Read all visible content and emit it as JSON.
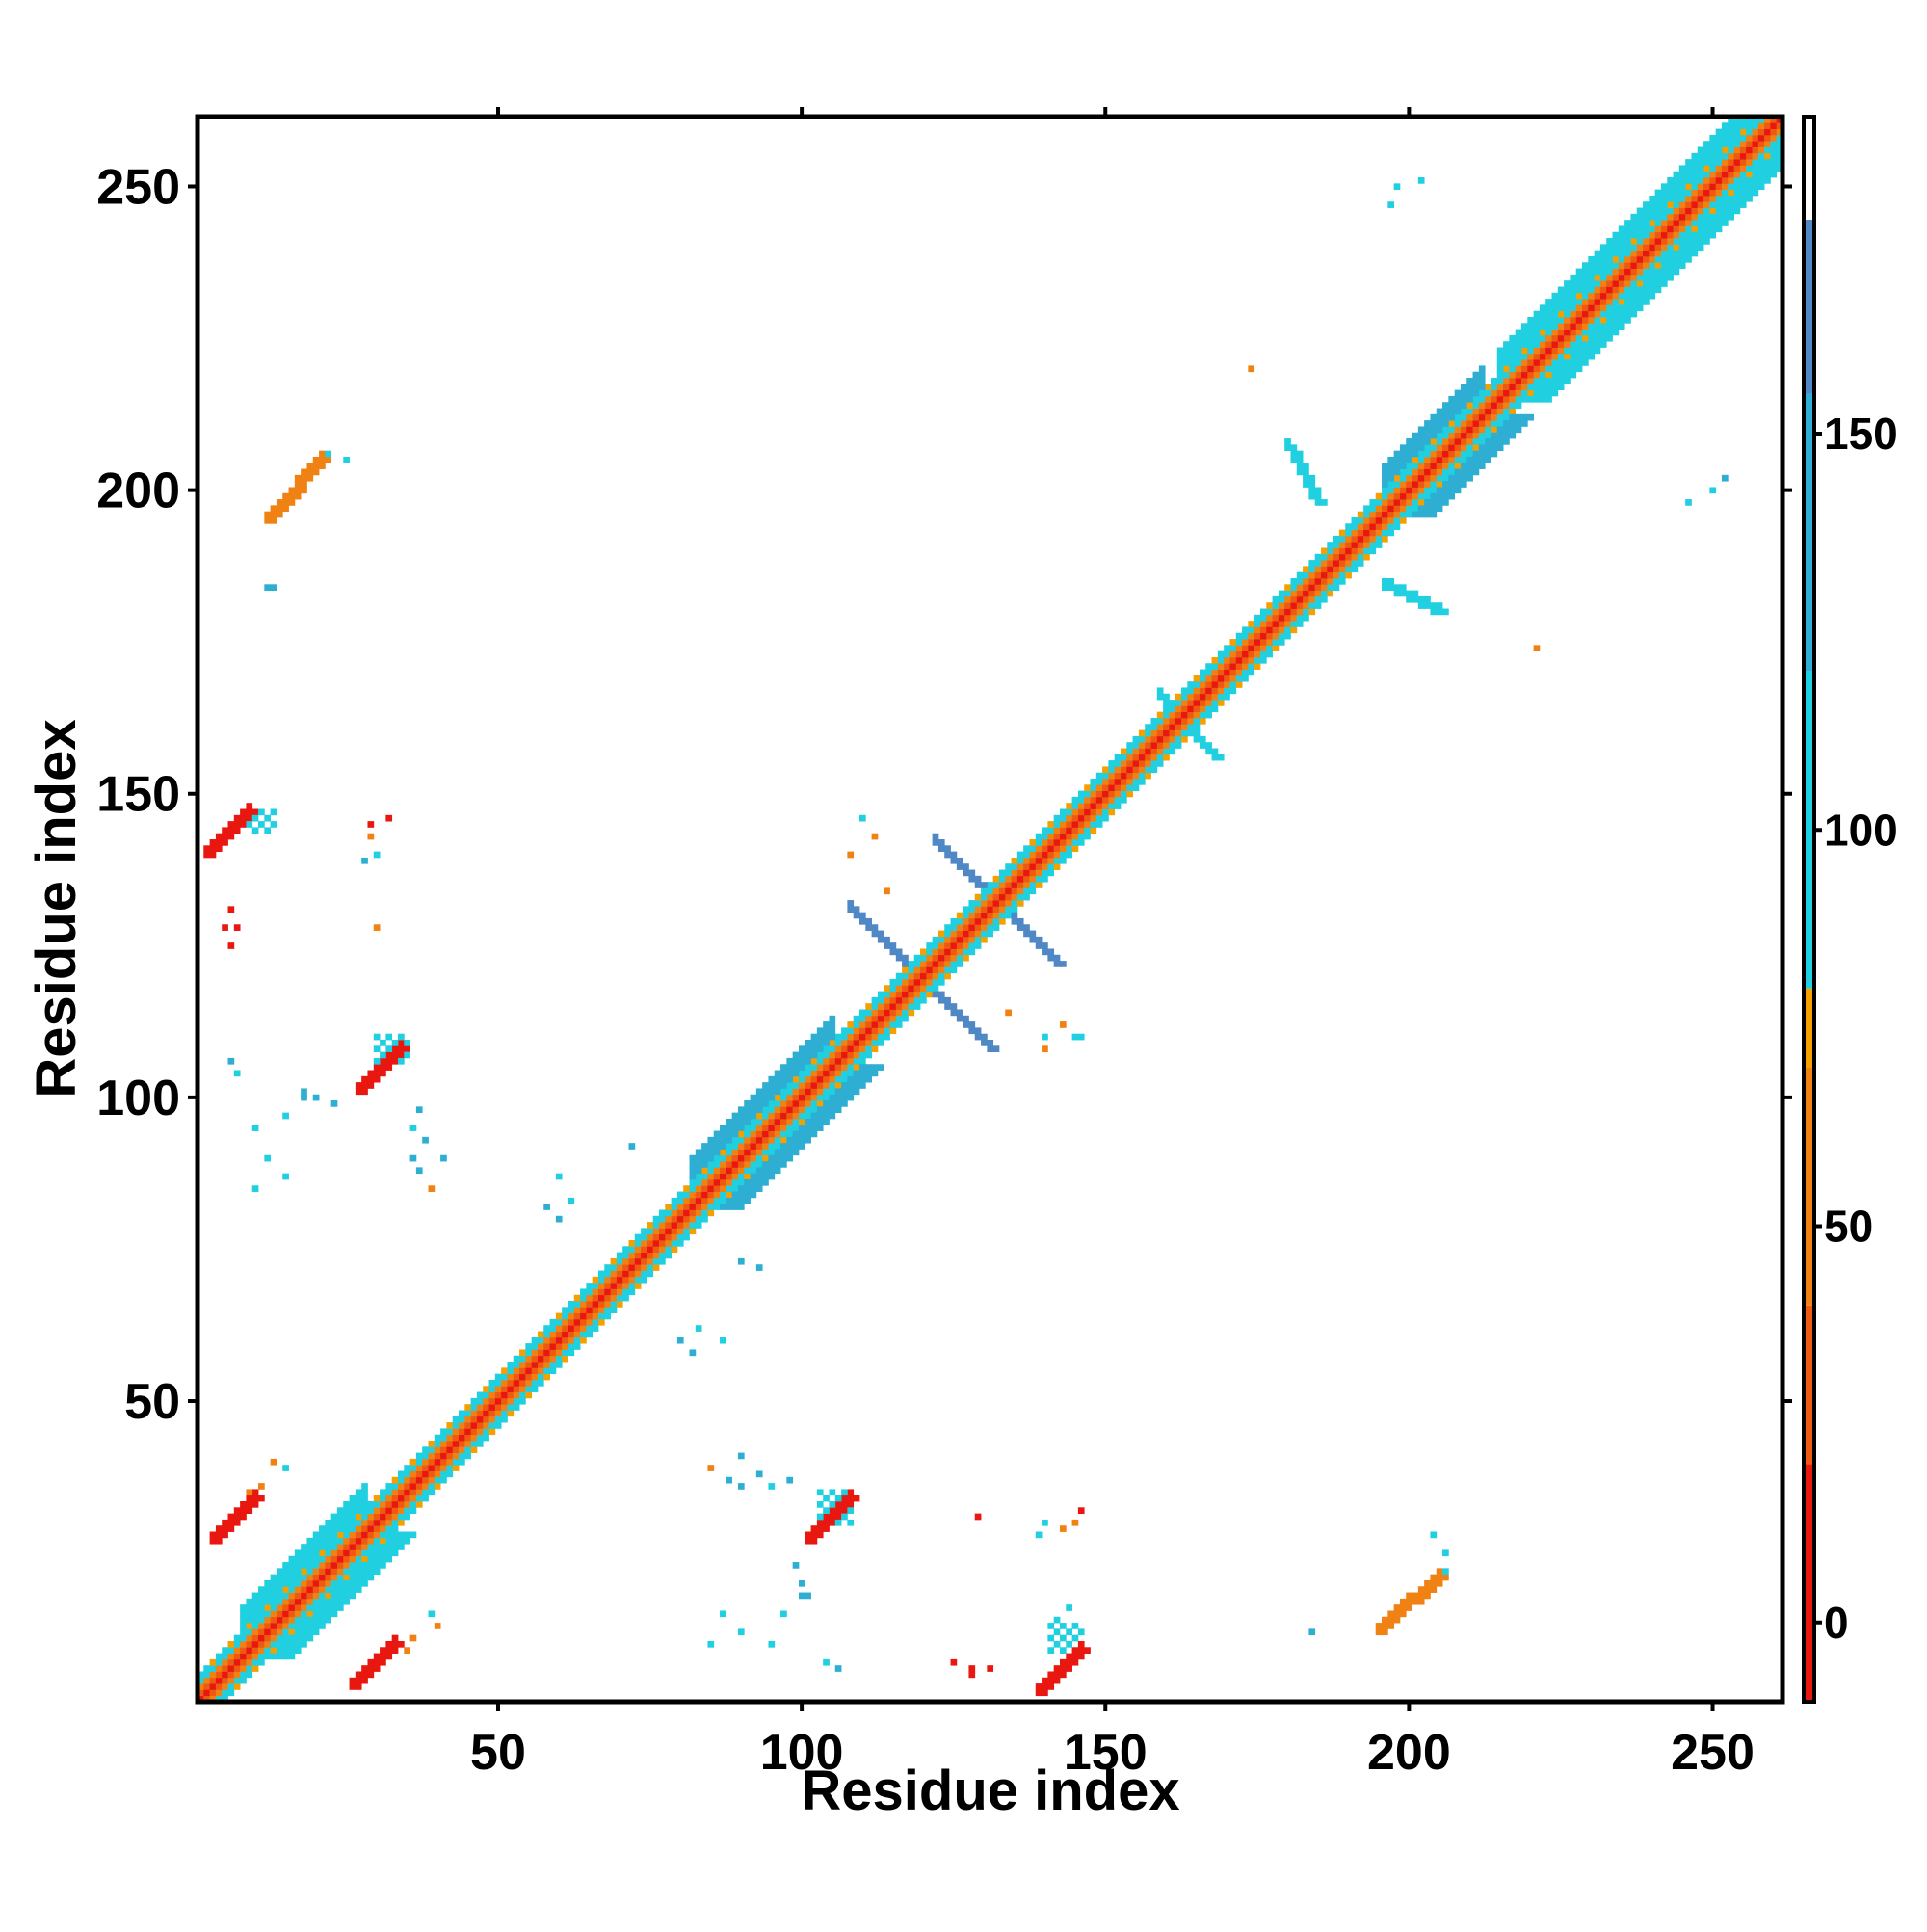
{
  "chart_data": {
    "type": "heatmap",
    "title": "",
    "xlabel": "Residue index",
    "ylabel": "Residue index",
    "xlim": [
      1,
      261
    ],
    "ylim": [
      1,
      261
    ],
    "x_ticks": [
      50,
      100,
      150,
      200,
      250
    ],
    "y_ticks": [
      50,
      100,
      150,
      200,
      250
    ],
    "x_tick_labels": [
      "50",
      "100",
      "150",
      "200",
      "250"
    ],
    "y_tick_labels": [
      "50",
      "100",
      "150",
      "200",
      "250"
    ],
    "colorbar": {
      "range": [
        -10,
        190
      ],
      "ticks": [
        0,
        50,
        100,
        150
      ],
      "tick_labels": [
        "0",
        "50",
        "100",
        "150"
      ],
      "bands": [
        {
          "from": -10,
          "to": 20,
          "color": "#e8170f"
        },
        {
          "from": 20,
          "to": 40,
          "color": "#ee5a12"
        },
        {
          "from": 40,
          "to": 70,
          "color": "#f08214"
        },
        {
          "from": 70,
          "to": 80,
          "color": "#f4a000"
        },
        {
          "from": 80,
          "to": 120,
          "color": "#20d0e0"
        },
        {
          "from": 120,
          "to": 155,
          "color": "#2eaed2"
        },
        {
          "from": 155,
          "to": 177,
          "color": "#4f88c4"
        },
        {
          "from": 177,
          "to": 190,
          "color": "#ffffff"
        }
      ]
    },
    "grid": false,
    "value_colors": {
      "0": "#e8170f",
      "30": "#ee5a12",
      "55": "#f08214",
      "75": "#f4a000",
      "100": "#20d0e0",
      "135": "#2eaed2",
      "165": "#4f88c4"
    },
    "diagonal": {
      "from": 1,
      "to": 261
    },
    "regions": [
      {
        "kind": "diag",
        "x0": 82,
        "x1": 105,
        "value": 135
      },
      {
        "kind": "diag",
        "x0": 196,
        "x1": 212,
        "value": 135
      },
      {
        "kind": "diag",
        "x0": 215,
        "x1": 261,
        "value": 100
      },
      {
        "kind": "diag",
        "x0": 8,
        "x1": 28,
        "value": 100
      },
      {
        "kind": "anti",
        "x0": 108,
        "x1": 131,
        "y0": 131,
        "y1": 108,
        "value": 165
      },
      {
        "kind": "anti",
        "x0": 122,
        "x1": 142,
        "y0": 142,
        "y1": 122,
        "value": 165
      },
      {
        "kind": "anti",
        "x0": 159,
        "x1": 168,
        "y0": 166,
        "y1": 156,
        "value": 100
      },
      {
        "kind": "anti",
        "x0": 180,
        "x1": 185,
        "y0": 207,
        "y1": 198,
        "value": 100
      },
      {
        "kind": "anti",
        "x0": 196,
        "x1": 205,
        "y0": 184,
        "y1": 180,
        "value": 100
      },
      {
        "kind": "para",
        "x0": 2,
        "x1": 9,
        "y0": 140,
        "y1": 147,
        "value": 0
      },
      {
        "kind": "para",
        "x0": 139,
        "x1": 146,
        "y0": 2,
        "y1": 9,
        "value": 0
      },
      {
        "kind": "para",
        "x0": 27,
        "x1": 34,
        "y0": 101,
        "y1": 108,
        "value": 0
      },
      {
        "kind": "para",
        "x0": 101,
        "x1": 108,
        "y0": 27,
        "y1": 34,
        "value": 0
      },
      {
        "kind": "para",
        "x0": 3,
        "x1": 10,
        "y0": 27,
        "y1": 34,
        "value": 0
      },
      {
        "kind": "para",
        "x0": 26,
        "x1": 33,
        "y0": 3,
        "y1": 10,
        "value": 0
      },
      {
        "kind": "para",
        "x0": 12,
        "x1": 21,
        "y0": 195,
        "y1": 205,
        "value": 55
      },
      {
        "kind": "para",
        "x0": 195,
        "x1": 205,
        "y0": 12,
        "y1": 21,
        "value": 55
      },
      {
        "kind": "box",
        "x0": 30,
        "x1": 35,
        "y0": 106,
        "y1": 110,
        "value": 100
      },
      {
        "kind": "box",
        "x0": 103,
        "x1": 108,
        "y0": 30,
        "y1": 35,
        "value": 100
      },
      {
        "kind": "box",
        "x0": 9,
        "x1": 13,
        "y0": 144,
        "y1": 147,
        "value": 100
      },
      {
        "kind": "box",
        "x0": 141,
        "x1": 146,
        "y0": 9,
        "y1": 13,
        "value": 100
      }
    ],
    "points": [
      [
        198,
        250,
        100
      ],
      [
        202,
        251,
        100
      ],
      [
        197,
        247,
        100
      ],
      [
        174,
        220,
        55
      ],
      [
        221,
        174,
        55
      ],
      [
        246,
        198,
        100
      ],
      [
        250,
        200,
        100
      ],
      [
        252,
        202,
        135
      ],
      [
        110,
        146,
        100
      ],
      [
        112,
        143,
        55
      ],
      [
        108,
        140,
        55
      ],
      [
        146,
        110,
        100
      ],
      [
        143,
        112,
        55
      ],
      [
        140,
        108,
        55
      ],
      [
        13,
        184,
        135
      ],
      [
        6,
        125,
        0
      ],
      [
        7,
        128,
        0
      ],
      [
        30,
        128,
        55
      ],
      [
        29,
        145,
        0
      ],
      [
        28,
        139,
        135
      ],
      [
        128,
        6,
        0
      ],
      [
        125,
        7,
        0
      ],
      [
        145,
        30,
        55
      ],
      [
        139,
        28,
        100
      ],
      [
        10,
        95,
        100
      ],
      [
        12,
        90,
        100
      ],
      [
        15,
        97,
        100
      ],
      [
        20,
        100,
        135
      ],
      [
        18,
        101,
        135
      ],
      [
        23,
        99,
        135
      ],
      [
        37,
        88,
        135
      ],
      [
        39,
        85,
        55
      ],
      [
        36,
        90,
        135
      ],
      [
        95,
        10,
        100
      ],
      [
        90,
        12,
        100
      ],
      [
        97,
        15,
        100
      ],
      [
        100,
        20,
        135
      ],
      [
        101,
        18,
        135
      ],
      [
        99,
        23,
        135
      ],
      [
        88,
        37,
        135
      ],
      [
        85,
        39,
        55
      ],
      [
        90,
        36,
        135
      ],
      [
        58,
        82,
        135
      ],
      [
        60,
        80,
        135
      ],
      [
        82,
        58,
        135
      ],
      [
        80,
        60,
        135
      ],
      [
        72,
        92,
        135
      ],
      [
        93,
        72,
        135
      ],
      [
        90,
        73,
        135
      ],
      [
        83,
        62,
        100
      ],
      [
        87,
        60,
        100
      ],
      [
        62,
        83,
        100
      ],
      [
        60,
        87,
        100
      ],
      [
        13,
        40,
        55
      ],
      [
        15,
        39,
        100
      ],
      [
        40,
        13,
        55
      ],
      [
        39,
        15,
        100
      ],
      [
        90,
        41,
        135
      ],
      [
        93,
        38,
        135
      ],
      [
        95,
        36,
        100
      ],
      [
        98,
        37,
        135
      ],
      [
        41,
        90,
        135
      ],
      [
        38,
        93,
        135
      ],
      [
        36,
        95,
        100
      ],
      [
        37,
        98,
        135
      ],
      [
        85,
        10,
        100
      ],
      [
        87,
        15,
        100
      ],
      [
        100,
        18,
        135
      ],
      [
        104,
        7,
        100
      ],
      [
        106,
        6,
        135
      ],
      [
        10,
        85,
        100
      ],
      [
        15,
        87,
        100
      ],
      [
        18,
        100,
        135
      ],
      [
        7,
        104,
        100
      ],
      [
        6,
        106,
        135
      ],
      [
        140,
        30,
        100
      ],
      [
        143,
        29,
        55
      ],
      [
        146,
        32,
        0
      ],
      [
        30,
        140,
        100
      ],
      [
        29,
        143,
        55
      ],
      [
        32,
        146,
        0
      ],
      [
        128,
        5,
        0
      ],
      [
        131,
        6,
        0
      ],
      [
        5,
        128,
        0
      ],
      [
        6,
        131,
        0
      ],
      [
        129,
        31,
        0
      ],
      [
        184,
        12,
        135
      ],
      [
        12,
        184,
        135
      ],
      [
        204,
        28,
        100
      ],
      [
        206,
        25,
        100
      ],
      [
        142,
        14,
        100
      ],
      [
        144,
        16,
        100
      ],
      [
        35,
        9,
        55
      ],
      [
        36,
        11,
        55
      ],
      [
        9,
        35,
        55
      ],
      [
        11,
        36,
        55
      ],
      [
        22,
        206,
        100
      ],
      [
        25,
        205,
        100
      ],
      [
        206,
        22,
        100
      ],
      [
        131,
        108,
        55
      ],
      [
        134,
        114,
        55
      ],
      [
        140,
        110,
        100
      ],
      [
        145,
        110,
        100
      ],
      [
        108,
        131,
        55
      ],
      [
        114,
        134,
        55
      ]
    ]
  }
}
